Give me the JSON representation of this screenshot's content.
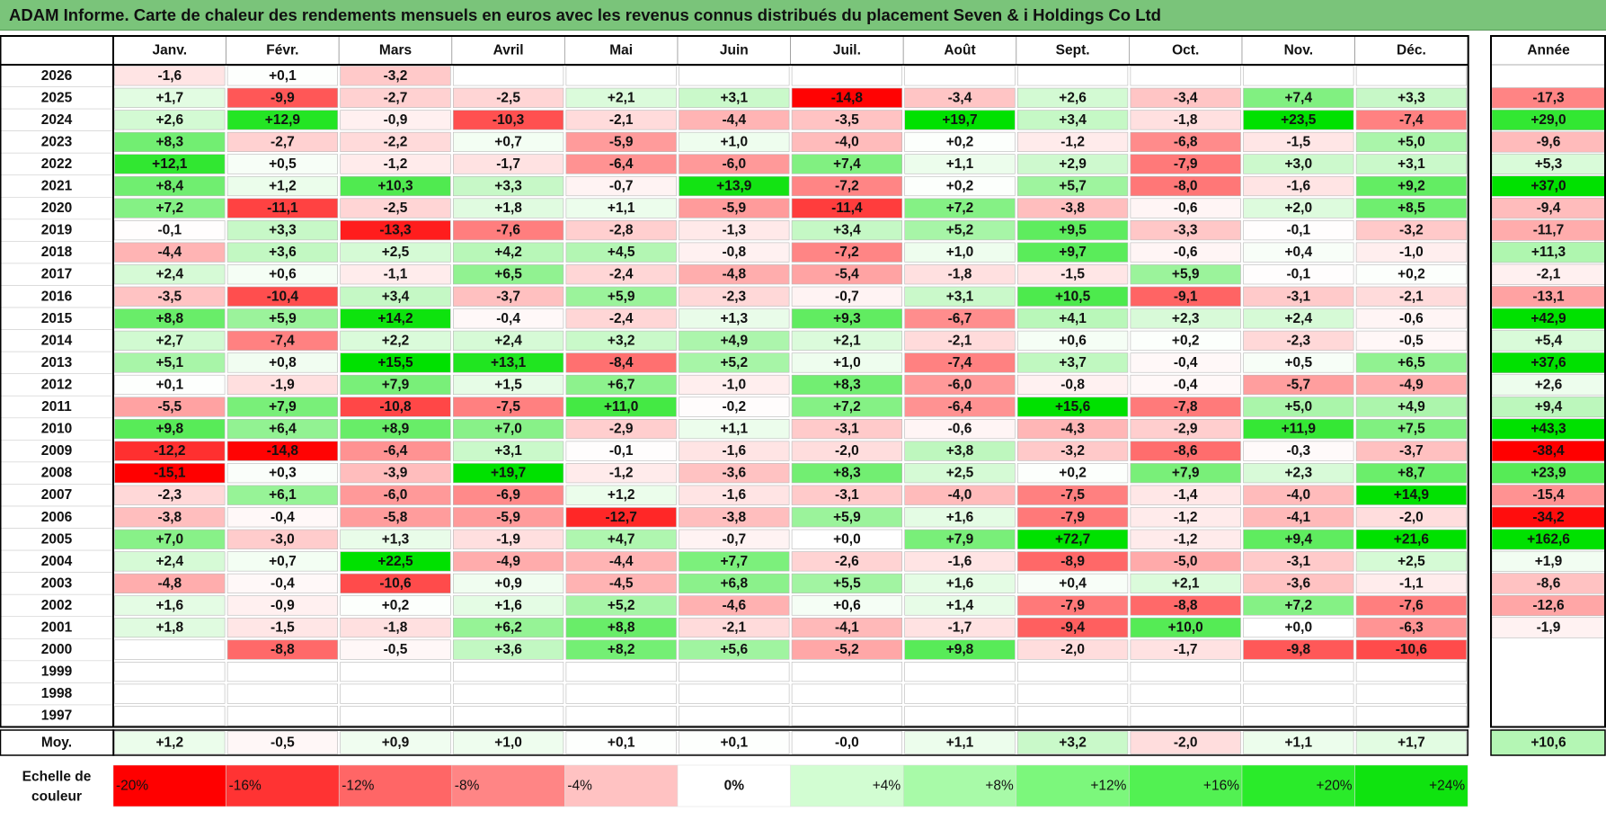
{
  "title": "ADAM Informe. Carte de chaleur des rendements mensuels en euros avec les revenus connus distribués du placement Seven & i Holdings Co Ltd",
  "chart_data": {
    "type": "heatmap",
    "title": "ADAM Informe. Carte de chaleur des rendements mensuels en euros avec les revenus connus distribués du placement Seven & i Holdings Co Ltd",
    "months": [
      "Janv.",
      "Févr.",
      "Mars",
      "Avril",
      "Mai",
      "Juin",
      "Juil.",
      "Août",
      "Sept.",
      "Oct.",
      "Nov.",
      "Déc."
    ],
    "annual_header": "Année",
    "rows": [
      {
        "year": "2026",
        "values": [
          "-1,6",
          "+0,1",
          "-3,2",
          "",
          "",
          "",
          "",
          "",
          "",
          "",
          "",
          ""
        ],
        "annual": ""
      },
      {
        "year": "2025",
        "values": [
          "+1,7",
          "-9,9",
          "-2,7",
          "-2,5",
          "+2,1",
          "+3,1",
          "-14,8",
          "-3,4",
          "+2,6",
          "-3,4",
          "+7,4",
          "+3,3"
        ],
        "annual": "-17,3"
      },
      {
        "year": "2024",
        "values": [
          "+2,6",
          "+12,9",
          "-0,9",
          "-10,3",
          "-2,1",
          "-4,4",
          "-3,5",
          "+19,7",
          "+3,4",
          "-1,8",
          "+23,5",
          "-7,4"
        ],
        "annual": "+29,0"
      },
      {
        "year": "2023",
        "values": [
          "+8,3",
          "-2,7",
          "-2,2",
          "+0,7",
          "-5,9",
          "+1,0",
          "-4,0",
          "+0,2",
          "-1,2",
          "-6,8",
          "-1,5",
          "+5,0"
        ],
        "annual": "-9,6"
      },
      {
        "year": "2022",
        "values": [
          "+12,1",
          "+0,5",
          "-1,2",
          "-1,7",
          "-6,4",
          "-6,0",
          "+7,4",
          "+1,1",
          "+2,9",
          "-7,9",
          "+3,0",
          "+3,1"
        ],
        "annual": "+5,3"
      },
      {
        "year": "2021",
        "values": [
          "+8,4",
          "+1,2",
          "+10,3",
          "+3,3",
          "-0,7",
          "+13,9",
          "-7,2",
          "+0,2",
          "+5,7",
          "-8,0",
          "-1,6",
          "+9,2"
        ],
        "annual": "+37,0"
      },
      {
        "year": "2020",
        "values": [
          "+7,2",
          "-11,1",
          "-2,5",
          "+1,8",
          "+1,1",
          "-5,9",
          "-11,4",
          "+7,2",
          "-3,8",
          "-0,6",
          "+2,0",
          "+8,5"
        ],
        "annual": "-9,4"
      },
      {
        "year": "2019",
        "values": [
          "-0,1",
          "+3,3",
          "-13,3",
          "-7,6",
          "-2,8",
          "-1,3",
          "+3,4",
          "+5,2",
          "+9,5",
          "-3,3",
          "-0,1",
          "-3,2"
        ],
        "annual": "-11,7"
      },
      {
        "year": "2018",
        "values": [
          "-4,4",
          "+3,6",
          "+2,5",
          "+4,2",
          "+4,5",
          "-0,8",
          "-7,2",
          "+1,0",
          "+9,7",
          "-0,6",
          "+0,4",
          "-1,0"
        ],
        "annual": "+11,3"
      },
      {
        "year": "2017",
        "values": [
          "+2,4",
          "+0,6",
          "-1,1",
          "+6,5",
          "-2,4",
          "-4,8",
          "-5,4",
          "-1,8",
          "-1,5",
          "+5,9",
          "-0,1",
          "+0,2"
        ],
        "annual": "-2,1"
      },
      {
        "year": "2016",
        "values": [
          "-3,5",
          "-10,4",
          "+3,4",
          "-3,7",
          "+5,9",
          "-2,3",
          "-0,7",
          "+3,1",
          "+10,5",
          "-9,1",
          "-3,1",
          "-2,1"
        ],
        "annual": "-13,1"
      },
      {
        "year": "2015",
        "values": [
          "+8,8",
          "+5,9",
          "+14,2",
          "-0,4",
          "-2,4",
          "+1,3",
          "+9,3",
          "-6,7",
          "+4,1",
          "+2,3",
          "+2,4",
          "-0,6"
        ],
        "annual": "+42,9"
      },
      {
        "year": "2014",
        "values": [
          "+2,7",
          "-7,4",
          "+2,2",
          "+2,4",
          "+3,2",
          "+4,9",
          "+2,1",
          "-2,1",
          "+0,6",
          "+0,2",
          "-2,3",
          "-0,5"
        ],
        "annual": "+5,4"
      },
      {
        "year": "2013",
        "values": [
          "+5,1",
          "+0,8",
          "+15,5",
          "+13,1",
          "-8,4",
          "+5,2",
          "+1,0",
          "-7,4",
          "+3,7",
          "-0,4",
          "+0,5",
          "+6,5"
        ],
        "annual": "+37,6"
      },
      {
        "year": "2012",
        "values": [
          "+0,1",
          "-1,9",
          "+7,9",
          "+1,5",
          "+6,7",
          "-1,0",
          "+8,3",
          "-6,0",
          "-0,8",
          "-0,4",
          "-5,7",
          "-4,9"
        ],
        "annual": "+2,6"
      },
      {
        "year": "2011",
        "values": [
          "-5,5",
          "+7,9",
          "-10,8",
          "-7,5",
          "+11,0",
          "-0,2",
          "+7,2",
          "-6,4",
          "+15,6",
          "-7,8",
          "+5,0",
          "+4,9"
        ],
        "annual": "+9,4"
      },
      {
        "year": "2010",
        "values": [
          "+9,8",
          "+6,4",
          "+8,9",
          "+7,0",
          "-2,9",
          "+1,1",
          "-3,1",
          "-0,6",
          "-4,3",
          "-2,9",
          "+11,9",
          "+7,5"
        ],
        "annual": "+43,3"
      },
      {
        "year": "2009",
        "values": [
          "-12,2",
          "-14,8",
          "-6,4",
          "+3,1",
          "-0,1",
          "-1,6",
          "-2,0",
          "+3,8",
          "-3,2",
          "-8,6",
          "-0,3",
          "-3,7"
        ],
        "annual": "-38,4"
      },
      {
        "year": "2008",
        "values": [
          "-15,1",
          "+0,3",
          "-3,9",
          "+19,7",
          "-1,2",
          "-3,6",
          "+8,3",
          "+2,5",
          "+0,2",
          "+7,9",
          "+2,3",
          "+8,7"
        ],
        "annual": "+23,9"
      },
      {
        "year": "2007",
        "values": [
          "-2,3",
          "+6,1",
          "-6,0",
          "-6,9",
          "+1,2",
          "-1,6",
          "-3,1",
          "-4,0",
          "-7,5",
          "-1,4",
          "-4,0",
          "+14,9"
        ],
        "annual": "-15,4"
      },
      {
        "year": "2006",
        "values": [
          "-3,8",
          "-0,4",
          "-5,8",
          "-5,9",
          "-12,7",
          "-3,8",
          "+5,9",
          "+1,6",
          "-7,9",
          "-1,2",
          "-4,1",
          "-2,0"
        ],
        "annual": "-34,2"
      },
      {
        "year": "2005",
        "values": [
          "+7,0",
          "-3,0",
          "+1,3",
          "-1,9",
          "+4,7",
          "-0,7",
          "+0,0",
          "+7,9",
          "+72,7",
          "-1,2",
          "+9,4",
          "+21,6"
        ],
        "annual": "+162,6"
      },
      {
        "year": "2004",
        "values": [
          "+2,4",
          "+0,7",
          "+22,5",
          "-4,9",
          "-4,4",
          "+7,7",
          "-2,6",
          "-1,6",
          "-8,9",
          "-5,0",
          "-3,1",
          "+2,5"
        ],
        "annual": "+1,9"
      },
      {
        "year": "2003",
        "values": [
          "-4,8",
          "-0,4",
          "-10,6",
          "+0,9",
          "-4,5",
          "+6,8",
          "+5,5",
          "+1,6",
          "+0,4",
          "+2,1",
          "-3,6",
          "-1,1"
        ],
        "annual": "-8,6"
      },
      {
        "year": "2002",
        "values": [
          "+1,6",
          "-0,9",
          "+0,2",
          "+1,6",
          "+5,2",
          "-4,6",
          "+0,6",
          "+1,4",
          "-7,9",
          "-8,8",
          "+7,2",
          "-7,6"
        ],
        "annual": "-12,6"
      },
      {
        "year": "2001",
        "values": [
          "+1,8",
          "-1,5",
          "-1,8",
          "+6,2",
          "+8,8",
          "-2,1",
          "-4,1",
          "-1,7",
          "-9,4",
          "+10,0",
          "+0,0",
          "-6,3"
        ],
        "annual": "-1,9"
      },
      {
        "year": "2000",
        "values": [
          "",
          "-8,8",
          "-0,5",
          "+3,6",
          "+8,2",
          "+5,6",
          "-5,2",
          "+9,8",
          "-2,0",
          "-1,7",
          "-9,8",
          "-10,6"
        ],
        "annual": ""
      },
      {
        "year": "1999",
        "values": [
          "",
          "",
          "",
          "",
          "",
          "",
          "",
          "",
          "",
          "",
          "",
          ""
        ],
        "annual": ""
      },
      {
        "year": "1998",
        "values": [
          "",
          "",
          "",
          "",
          "",
          "",
          "",
          "",
          "",
          "",
          "",
          ""
        ],
        "annual": ""
      },
      {
        "year": "1997",
        "values": [
          "",
          "",
          "",
          "",
          "",
          "",
          "",
          "",
          "",
          "",
          "",
          ""
        ],
        "annual": ""
      }
    ],
    "average": {
      "label": "Moy.",
      "values": [
        "+1,2",
        "-0,5",
        "+0,9",
        "+1,0",
        "+0,1",
        "+0,1",
        "-0,0",
        "+1,1",
        "+3,2",
        "-2,0",
        "+1,1",
        "+1,7"
      ],
      "annual": "+10,6"
    },
    "scale": {
      "label": [
        "Echelle de",
        "couleur"
      ],
      "stops": [
        "-20%",
        "-16%",
        "-12%",
        "-8%",
        "-4%",
        "0%",
        "+4%",
        "+8%",
        "+12%",
        "+16%",
        "+20%",
        "+24%"
      ],
      "colors": [
        "#ff0000",
        "#ff3333",
        "#ff6666",
        "#ff8585",
        "#ffc2c2",
        "#ffffff",
        "#d2fdd2",
        "#a8faa8",
        "#7cf77c",
        "#52f152",
        "#2aeb2a",
        "#0fe30f"
      ]
    },
    "colors": {
      "title_bar": "#7ac47a",
      "negative": "#ff0000",
      "positive": "#00dd00",
      "neutral": "#ffffff"
    }
  }
}
